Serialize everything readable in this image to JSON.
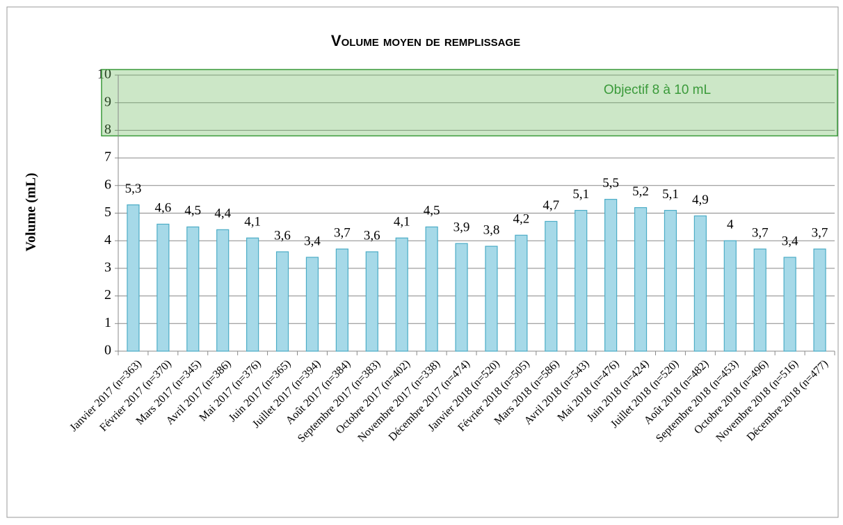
{
  "chart_data": {
    "type": "bar",
    "title": "Volume moyen de remplissage",
    "y_label": "Volume (mL)",
    "categories": [
      "Janvier 2017 (n=363)",
      "Février 2017 (n=370)",
      "Mars 2017 (n=345)",
      "Avril 2017 (n=386)",
      "Mai 2017 (n=376)",
      "Juin 2017 (n=365)",
      "Juillet 2017 (n=394)",
      "Août 2017 (n=384)",
      "Septembre 2017 (n=383)",
      "Octobre 2017 (n=402)",
      "Novembre 2017 (n=338)",
      "Décembre 2017 (n=474)",
      "Janvier 2018 (n=520)",
      "Février 2018 (n=505)",
      "Mars 2018 (n=586)",
      "Avril 2018 (n=543)",
      "Mai 2018 (n=476)",
      "Juin 2018 (n=424)",
      "Juillet 2018 (n=520)",
      "Août 2018 (n=482)",
      "Septembre 2018 (n=453)",
      "Octobre 2018 (n=496)",
      "Novembre 2018 (n=516)",
      "Décembre 2018 (n=477)"
    ],
    "values": [
      5.3,
      4.6,
      4.5,
      4.4,
      4.1,
      3.6,
      3.4,
      3.7,
      3.6,
      4.1,
      4.5,
      3.9,
      3.8,
      4.2,
      4.7,
      5.1,
      5.5,
      5.2,
      5.1,
      4.9,
      4,
      3.7,
      3.4,
      3.7
    ],
    "value_labels": [
      "5,3",
      "4,6",
      "4,5",
      "4,4",
      "4,1",
      "3,6",
      "3,4",
      "3,7",
      "3,6",
      "4,1",
      "4,5",
      "3,9",
      "3,8",
      "4,2",
      "4,7",
      "5,1",
      "5,5",
      "5,2",
      "5,1",
      "4,9",
      "4",
      "3,7",
      "3,4",
      "3,7"
    ],
    "color": "#a6d9e8",
    "ylim": [
      0,
      10
    ],
    "yticks": [
      0,
      1,
      2,
      3,
      4,
      5,
      6,
      7,
      8,
      9,
      10
    ],
    "grid": true,
    "target_band": {
      "label": "Objectif 8 à 10 mL",
      "from": 8,
      "to": 10,
      "color": "#3a9a3a"
    }
  }
}
